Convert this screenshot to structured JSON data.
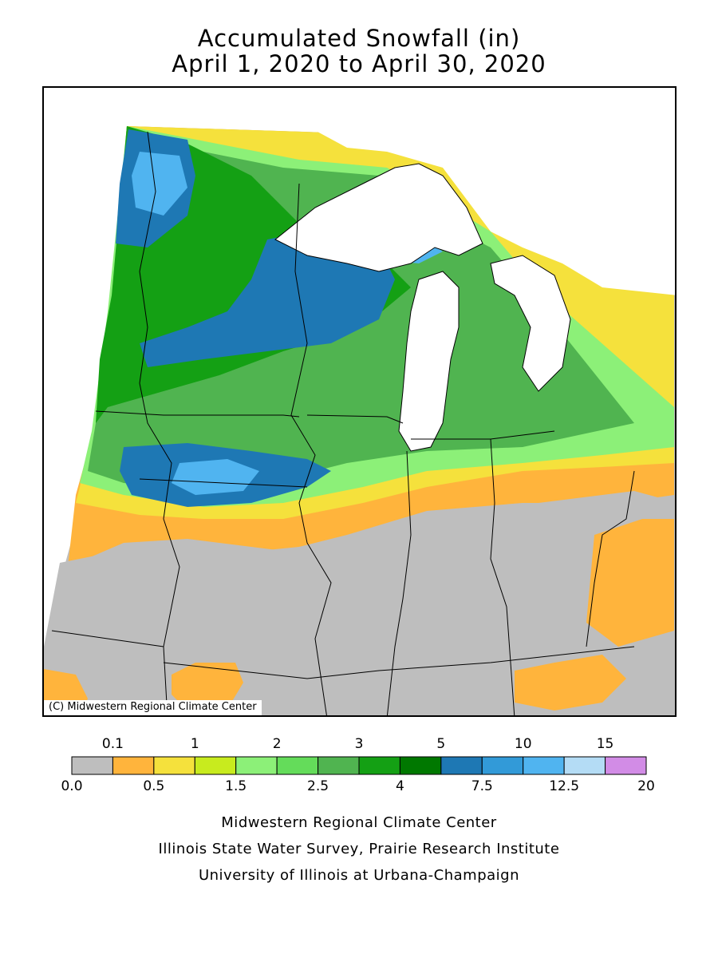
{
  "title": {
    "line1": "Accumulated Snowfall (in)",
    "line2": "April 1, 2020 to April 30, 2020"
  },
  "map": {
    "credit": "(C) Midwestern Regional Climate Center",
    "icons": [
      "state-border-lines",
      "lake-outline"
    ]
  },
  "legend": {
    "colors": [
      "#bebebe",
      "#ffb43c",
      "#f5e13c",
      "#c8eb1e",
      "#8cf078",
      "#64dc5a",
      "#50b450",
      "#14a014",
      "#007800",
      "#1e78b4",
      "#329ad8",
      "#50b4f0",
      "#b4dcf5",
      "#d28ce6"
    ],
    "top_labels": [
      "0.1",
      "1",
      "2",
      "3",
      "5",
      "10",
      "15"
    ],
    "bottom_labels": [
      "0.0",
      "0.5",
      "1.5",
      "2.5",
      "4",
      "7.5",
      "12.5",
      "20"
    ]
  },
  "footer": {
    "line1": "Midwestern Regional Climate Center",
    "line2": "Illinois State Water Survey, Prairie Research Institute",
    "line3": "University of Illinois at Urbana-Champaign"
  }
}
